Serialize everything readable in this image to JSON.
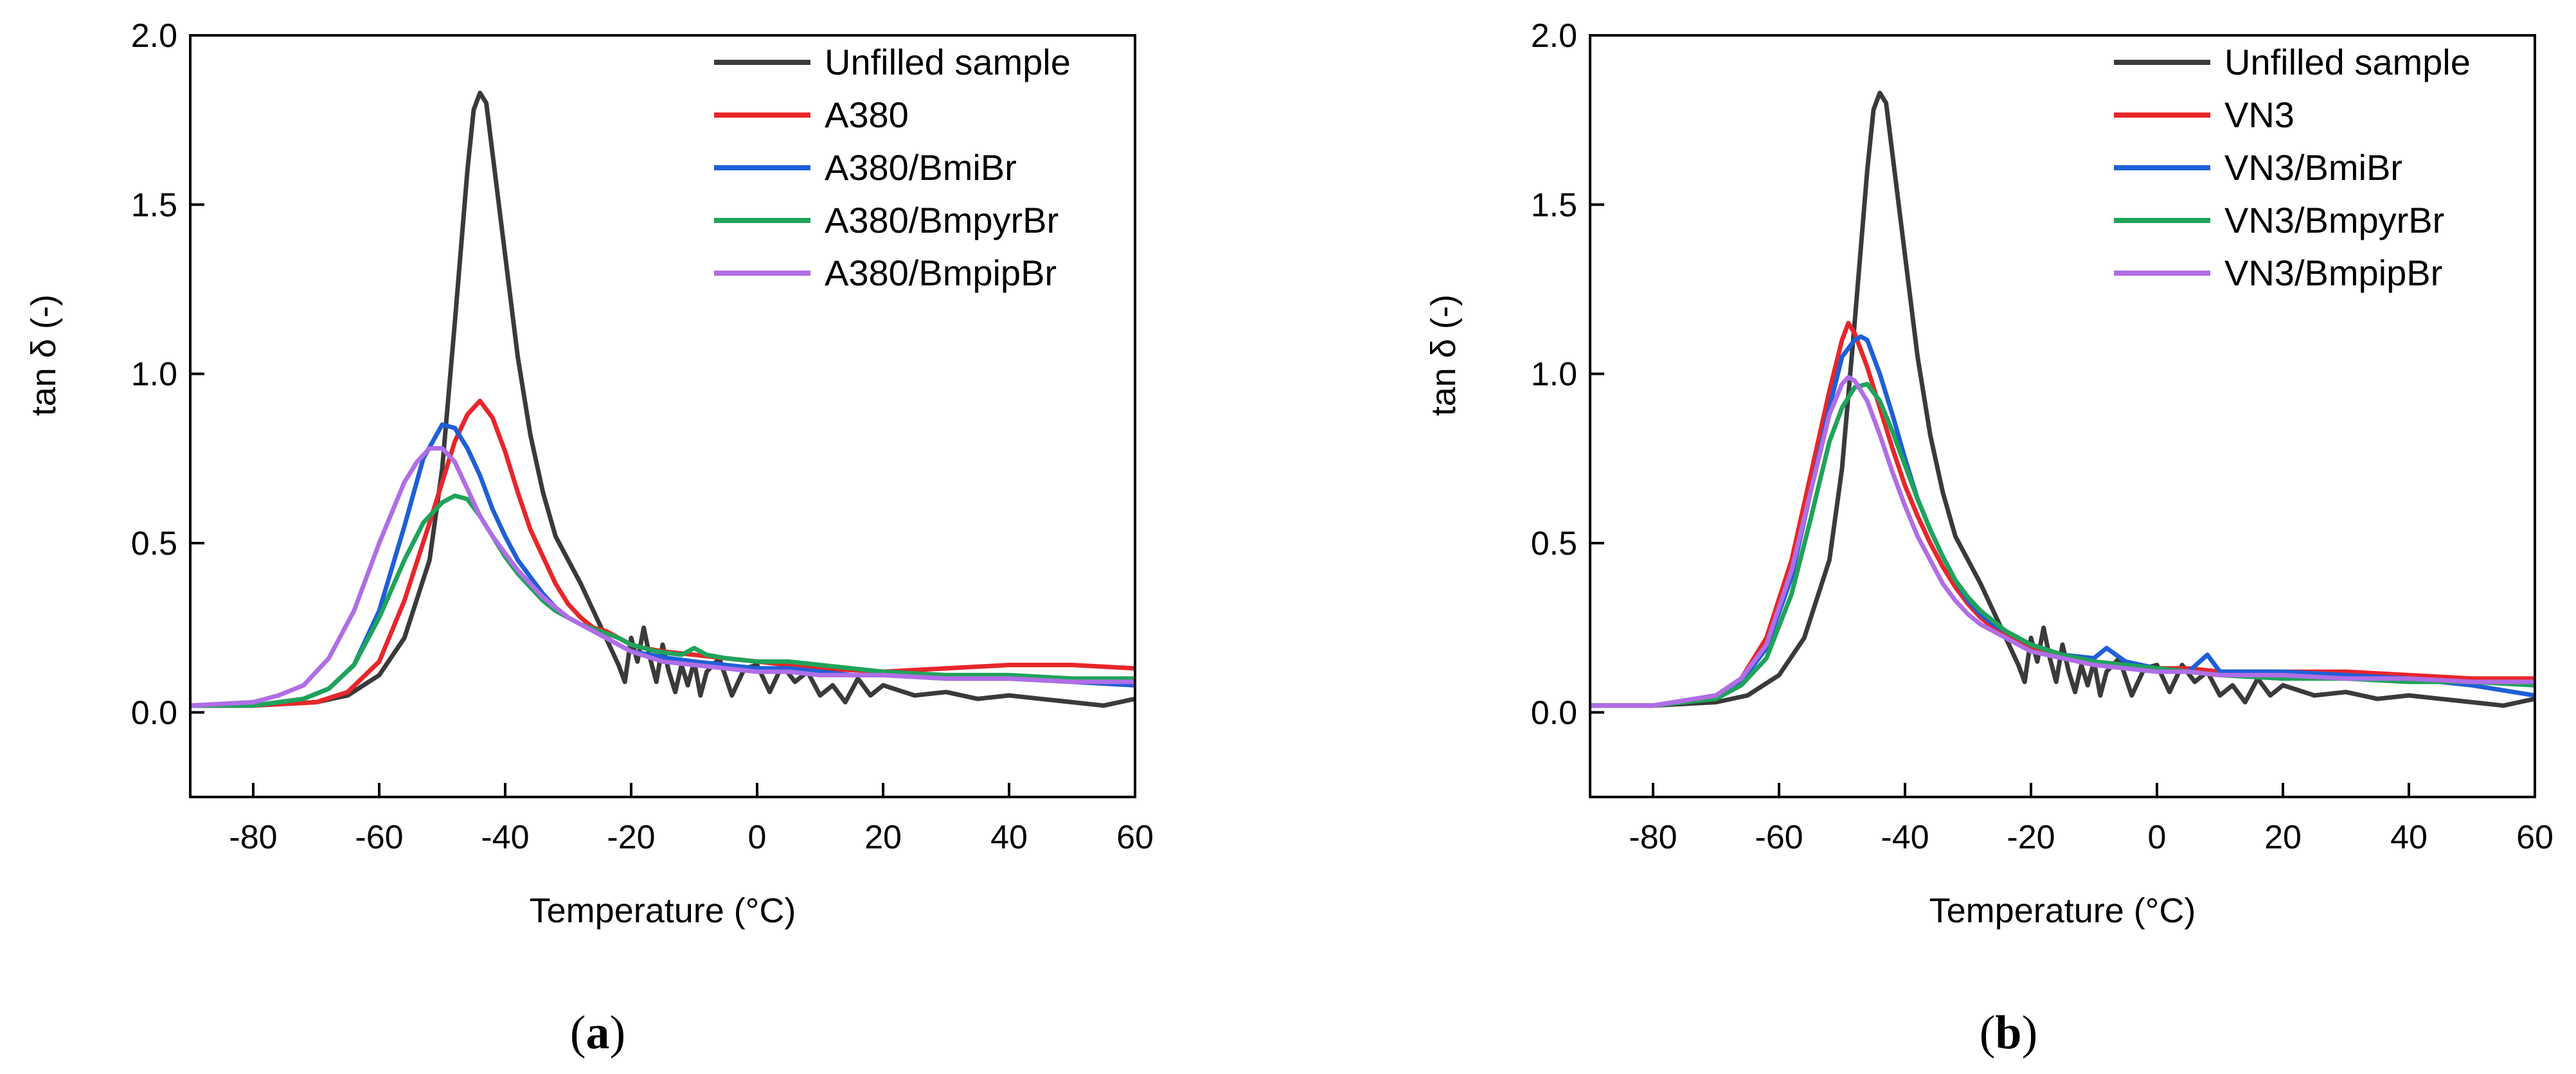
{
  "chart_data": [
    {
      "type": "line",
      "panel_label": "a",
      "xlabel": "Temperature (°C)",
      "ylabel": "tan δ (-)",
      "xlim": [
        -90,
        60
      ],
      "ylim": [
        -0.25,
        2.0
      ],
      "xticks": [
        -80,
        -60,
        -40,
        -20,
        0,
        20,
        40,
        60
      ],
      "yticks": [
        0.0,
        0.5,
        1.0,
        1.5,
        2.0
      ],
      "xtick_labels": [
        "-80",
        "-60",
        "-40",
        "-20",
        "0",
        "20",
        "40",
        "60"
      ],
      "ytick_labels": [
        "0.0",
        "0.5",
        "1.0",
        "1.5",
        "2.0"
      ],
      "legend_position": "top-right",
      "series": [
        {
          "name": "Unfilled sample",
          "color": "#3a3a3a",
          "x": [
            -90,
            -80,
            -70,
            -65,
            -60,
            -56,
            -52,
            -50,
            -48,
            -46,
            -45,
            -44,
            -43,
            -42,
            -40,
            -38,
            -36,
            -34,
            -32,
            -30,
            -28,
            -26,
            -24,
            -22,
            -21,
            -20,
            -19,
            -18,
            -17,
            -16,
            -15,
            -14,
            -13,
            -12,
            -11,
            -10,
            -9,
            -8,
            -6,
            -4,
            -2,
            0,
            2,
            4,
            6,
            8,
            10,
            12,
            14,
            16,
            18,
            20,
            25,
            30,
            35,
            40,
            45,
            50,
            55,
            60
          ],
          "y": [
            0.02,
            0.02,
            0.03,
            0.05,
            0.11,
            0.22,
            0.45,
            0.72,
            1.15,
            1.6,
            1.78,
            1.83,
            1.8,
            1.65,
            1.35,
            1.05,
            0.82,
            0.65,
            0.52,
            0.45,
            0.38,
            0.3,
            0.22,
            0.14,
            0.09,
            0.22,
            0.15,
            0.25,
            0.16,
            0.09,
            0.2,
            0.12,
            0.06,
            0.14,
            0.08,
            0.15,
            0.05,
            0.12,
            0.16,
            0.05,
            0.13,
            0.14,
            0.06,
            0.14,
            0.09,
            0.12,
            0.05,
            0.08,
            0.03,
            0.1,
            0.05,
            0.08,
            0.05,
            0.06,
            0.04,
            0.05,
            0.04,
            0.03,
            0.02,
            0.04
          ]
        },
        {
          "name": "A380",
          "color": "#e8262a",
          "x": [
            -90,
            -80,
            -70,
            -65,
            -60,
            -56,
            -52,
            -50,
            -48,
            -46,
            -44,
            -42,
            -40,
            -38,
            -36,
            -34,
            -32,
            -30,
            -28,
            -26,
            -24,
            -22,
            -20,
            -18,
            -15,
            -10,
            -5,
            0,
            5,
            10,
            20,
            30,
            40,
            50,
            60
          ],
          "y": [
            0.02,
            0.02,
            0.03,
            0.06,
            0.15,
            0.33,
            0.56,
            0.68,
            0.8,
            0.88,
            0.92,
            0.87,
            0.77,
            0.65,
            0.54,
            0.46,
            0.38,
            0.32,
            0.28,
            0.25,
            0.24,
            0.22,
            0.2,
            0.19,
            0.18,
            0.17,
            0.16,
            0.15,
            0.14,
            0.13,
            0.12,
            0.13,
            0.14,
            0.14,
            0.13
          ]
        },
        {
          "name": "A380/BmiBr",
          "color": "#1f5fd6",
          "x": [
            -90,
            -80,
            -72,
            -68,
            -64,
            -60,
            -56,
            -53,
            -50,
            -48,
            -46,
            -44,
            -42,
            -40,
            -38,
            -36,
            -34,
            -32,
            -30,
            -28,
            -26,
            -24,
            -22,
            -20,
            -17,
            -14,
            -10,
            -5,
            0,
            5,
            10,
            15,
            20,
            30,
            40,
            50,
            60
          ],
          "y": [
            0.02,
            0.02,
            0.04,
            0.07,
            0.14,
            0.3,
            0.55,
            0.75,
            0.85,
            0.84,
            0.78,
            0.7,
            0.6,
            0.52,
            0.45,
            0.4,
            0.35,
            0.31,
            0.28,
            0.26,
            0.24,
            0.22,
            0.2,
            0.18,
            0.17,
            0.16,
            0.15,
            0.14,
            0.13,
            0.13,
            0.12,
            0.11,
            0.11,
            0.1,
            0.1,
            0.09,
            0.08
          ]
        },
        {
          "name": "A380/BmpyrBr",
          "color": "#1fa35a",
          "x": [
            -90,
            -80,
            -72,
            -68,
            -64,
            -60,
            -56,
            -53,
            -50,
            -48,
            -46,
            -44,
            -42,
            -40,
            -38,
            -36,
            -34,
            -32,
            -30,
            -28,
            -25,
            -22,
            -20,
            -16,
            -12,
            -10,
            -8,
            -5,
            0,
            5,
            10,
            20,
            30,
            40,
            50,
            60
          ],
          "y": [
            0.02,
            0.02,
            0.04,
            0.07,
            0.14,
            0.28,
            0.45,
            0.56,
            0.62,
            0.64,
            0.63,
            0.58,
            0.52,
            0.46,
            0.41,
            0.37,
            0.33,
            0.3,
            0.28,
            0.26,
            0.24,
            0.22,
            0.2,
            0.18,
            0.17,
            0.19,
            0.17,
            0.16,
            0.15,
            0.15,
            0.14,
            0.12,
            0.11,
            0.11,
            0.1,
            0.1
          ]
        },
        {
          "name": "A380/BmpipBr",
          "color": "#b06ee6",
          "x": [
            -90,
            -80,
            -76,
            -72,
            -68,
            -64,
            -60,
            -56,
            -54,
            -52,
            -50,
            -48,
            -46,
            -44,
            -42,
            -40,
            -38,
            -36,
            -34,
            -32,
            -30,
            -28,
            -26,
            -24,
            -22,
            -20,
            -15,
            -10,
            -5,
            0,
            5,
            10,
            20,
            30,
            40,
            50,
            60
          ],
          "y": [
            0.02,
            0.03,
            0.05,
            0.08,
            0.16,
            0.3,
            0.5,
            0.68,
            0.74,
            0.78,
            0.78,
            0.74,
            0.66,
            0.58,
            0.52,
            0.47,
            0.42,
            0.38,
            0.34,
            0.31,
            0.28,
            0.26,
            0.24,
            0.22,
            0.2,
            0.18,
            0.15,
            0.14,
            0.13,
            0.12,
            0.12,
            0.11,
            0.11,
            0.1,
            0.1,
            0.09,
            0.09
          ]
        }
      ]
    },
    {
      "type": "line",
      "panel_label": "b",
      "xlabel": "Temperature (°C)",
      "ylabel": "tan δ (-)",
      "xlim": [
        -90,
        60
      ],
      "ylim": [
        -0.25,
        2.0
      ],
      "xticks": [
        -80,
        -60,
        -40,
        -20,
        0,
        20,
        40,
        60
      ],
      "yticks": [
        0.0,
        0.5,
        1.0,
        1.5,
        2.0
      ],
      "xtick_labels": [
        "-80",
        "-60",
        "-40",
        "-20",
        "0",
        "20",
        "40",
        "60"
      ],
      "ytick_labels": [
        "0.0",
        "0.5",
        "1.0",
        "1.5",
        "2.0"
      ],
      "legend_position": "top-right",
      "series": [
        {
          "name": "Unfilled sample",
          "color": "#3a3a3a",
          "x": [
            -90,
            -80,
            -70,
            -65,
            -60,
            -56,
            -52,
            -50,
            -48,
            -46,
            -45,
            -44,
            -43,
            -42,
            -40,
            -38,
            -36,
            -34,
            -32,
            -30,
            -28,
            -26,
            -24,
            -22,
            -21,
            -20,
            -19,
            -18,
            -17,
            -16,
            -15,
            -14,
            -13,
            -12,
            -11,
            -10,
            -9,
            -8,
            -6,
            -4,
            -2,
            0,
            2,
            4,
            6,
            8,
            10,
            12,
            14,
            16,
            18,
            20,
            25,
            30,
            35,
            40,
            45,
            50,
            55,
            60
          ],
          "y": [
            0.02,
            0.02,
            0.03,
            0.05,
            0.11,
            0.22,
            0.45,
            0.72,
            1.15,
            1.6,
            1.78,
            1.83,
            1.8,
            1.65,
            1.35,
            1.05,
            0.82,
            0.65,
            0.52,
            0.45,
            0.38,
            0.3,
            0.22,
            0.14,
            0.09,
            0.22,
            0.15,
            0.25,
            0.16,
            0.09,
            0.2,
            0.12,
            0.06,
            0.14,
            0.08,
            0.15,
            0.05,
            0.12,
            0.16,
            0.05,
            0.13,
            0.14,
            0.06,
            0.14,
            0.09,
            0.12,
            0.05,
            0.08,
            0.03,
            0.1,
            0.05,
            0.08,
            0.05,
            0.06,
            0.04,
            0.05,
            0.04,
            0.03,
            0.02,
            0.04
          ]
        },
        {
          "name": "VN3",
          "color": "#e8262a",
          "x": [
            -90,
            -80,
            -70,
            -66,
            -62,
            -58,
            -55,
            -52,
            -50,
            -49,
            -48,
            -46,
            -44,
            -42,
            -40,
            -38,
            -36,
            -34,
            -32,
            -30,
            -28,
            -26,
            -24,
            -22,
            -20,
            -15,
            -10,
            -5,
            0,
            5,
            10,
            20,
            30,
            40,
            50,
            60
          ],
          "y": [
            0.02,
            0.02,
            0.05,
            0.1,
            0.22,
            0.45,
            0.7,
            0.95,
            1.1,
            1.15,
            1.12,
            1.02,
            0.9,
            0.78,
            0.67,
            0.58,
            0.5,
            0.43,
            0.37,
            0.32,
            0.28,
            0.25,
            0.23,
            0.21,
            0.19,
            0.17,
            0.15,
            0.14,
            0.13,
            0.13,
            0.12,
            0.12,
            0.12,
            0.11,
            0.1,
            0.1
          ]
        },
        {
          "name": "VN3/BmiBr",
          "color": "#1f5fd6",
          "x": [
            -90,
            -80,
            -70,
            -66,
            -62,
            -58,
            -55,
            -52,
            -50,
            -48,
            -47,
            -46,
            -44,
            -42,
            -40,
            -38,
            -36,
            -34,
            -32,
            -30,
            -28,
            -26,
            -24,
            -22,
            -20,
            -15,
            -10,
            -8,
            -5,
            0,
            5,
            8,
            10,
            20,
            30,
            40,
            50,
            60
          ],
          "y": [
            0.02,
            0.02,
            0.05,
            0.09,
            0.19,
            0.4,
            0.65,
            0.9,
            1.05,
            1.1,
            1.11,
            1.1,
            1.0,
            0.88,
            0.75,
            0.63,
            0.54,
            0.46,
            0.39,
            0.33,
            0.29,
            0.26,
            0.24,
            0.22,
            0.2,
            0.17,
            0.16,
            0.19,
            0.15,
            0.13,
            0.12,
            0.17,
            0.12,
            0.12,
            0.11,
            0.1,
            0.08,
            0.05
          ]
        },
        {
          "name": "VN3/BmpyrBr",
          "color": "#1fa35a",
          "x": [
            -90,
            -80,
            -70,
            -66,
            -62,
            -58,
            -55,
            -52,
            -50,
            -48,
            -46,
            -44,
            -42,
            -40,
            -38,
            -36,
            -34,
            -32,
            -30,
            -28,
            -26,
            -24,
            -22,
            -20,
            -15,
            -10,
            -5,
            0,
            5,
            10,
            20,
            30,
            40,
            50,
            60
          ],
          "y": [
            0.02,
            0.02,
            0.04,
            0.08,
            0.16,
            0.35,
            0.57,
            0.8,
            0.9,
            0.96,
            0.97,
            0.92,
            0.83,
            0.73,
            0.63,
            0.54,
            0.46,
            0.39,
            0.34,
            0.3,
            0.27,
            0.24,
            0.22,
            0.2,
            0.17,
            0.15,
            0.14,
            0.13,
            0.12,
            0.11,
            0.1,
            0.1,
            0.09,
            0.09,
            0.08
          ]
        },
        {
          "name": "VN3/BmpipBr",
          "color": "#b06ee6",
          "x": [
            -90,
            -80,
            -70,
            -66,
            -62,
            -58,
            -55,
            -52,
            -50,
            -49,
            -48,
            -46,
            -44,
            -42,
            -40,
            -38,
            -36,
            -34,
            -32,
            -30,
            -28,
            -26,
            -24,
            -22,
            -20,
            -15,
            -10,
            -5,
            0,
            5,
            10,
            20,
            30,
            40,
            50,
            60
          ],
          "y": [
            0.02,
            0.02,
            0.05,
            0.1,
            0.2,
            0.42,
            0.65,
            0.88,
            0.97,
            0.99,
            0.98,
            0.92,
            0.82,
            0.71,
            0.61,
            0.52,
            0.45,
            0.38,
            0.33,
            0.29,
            0.26,
            0.24,
            0.22,
            0.2,
            0.18,
            0.16,
            0.14,
            0.13,
            0.12,
            0.12,
            0.11,
            0.11,
            0.1,
            0.1,
            0.09,
            0.09
          ]
        }
      ]
    }
  ]
}
